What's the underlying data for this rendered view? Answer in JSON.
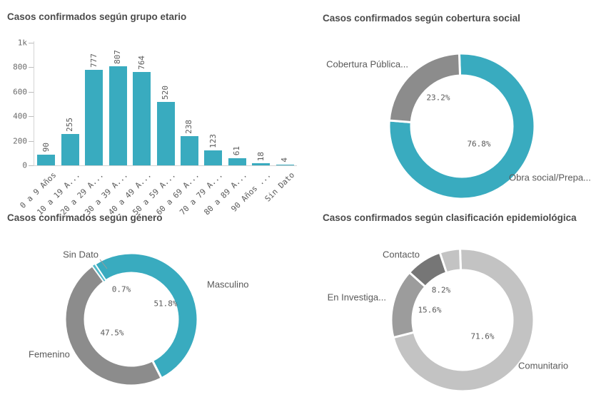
{
  "colors": {
    "teal": "#39abbf",
    "teal_light": "#52b9c9",
    "gray": "#8c8c8c",
    "gray_light": "#c3c3c3",
    "gray_medium": "#9c9c9c",
    "gray_dark": "#767676",
    "title_text": "#4c4c4c",
    "label_text": "#595959",
    "axis_line": "#d4d4d4"
  },
  "chart_data": [
    {
      "id": "grupo_etario",
      "type": "bar",
      "title": "Casos confirmados según grupo etario",
      "categories": [
        "0 a 9 Años",
        "10 a 19 A...",
        "20 a 29 A...",
        "30 a 39 A...",
        "40 a 49 A...",
        "50 a 59 A...",
        "60 a 69 A...",
        "70 a 79 A...",
        "80 a 89 A...",
        "90 Años ...",
        "Sin Dato"
      ],
      "values": [
        90,
        255,
        777,
        807,
        764,
        520,
        238,
        123,
        61,
        18,
        4
      ],
      "bar_color": "#39abbf",
      "ylim": [
        0,
        1000
      ],
      "grid": false,
      "y_ticks": [
        {
          "value": 0,
          "label": "0"
        },
        {
          "value": 200,
          "label": "200"
        },
        {
          "value": 400,
          "label": "400"
        },
        {
          "value": 600,
          "label": "600"
        },
        {
          "value": 800,
          "label": "800"
        },
        {
          "value": 1000,
          "label": "1k"
        }
      ]
    },
    {
      "id": "cobertura_social",
      "type": "donut",
      "title": "Casos confirmados según cobertura social",
      "slices": [
        {
          "label": "Obra social/Prepa...",
          "pct": 76.8,
          "pct_label": "76.8%",
          "color": "#39abbf"
        },
        {
          "label": "Cobertura Pública...",
          "pct": 23.2,
          "pct_label": "23.2%",
          "color": "#8c8c8c"
        }
      ]
    },
    {
      "id": "genero",
      "type": "donut",
      "title": "Casos confirmados según género",
      "slices": [
        {
          "label": "Masculino",
          "pct": 51.8,
          "pct_label": "51.8%",
          "color": "#39abbf"
        },
        {
          "label": "Femenino",
          "pct": 47.5,
          "pct_label": "47.5%",
          "color": "#8c8c8c"
        },
        {
          "label": "Sin Dato",
          "pct": 0.7,
          "pct_label": "0.7%",
          "color": "#52b9c9"
        }
      ]
    },
    {
      "id": "clasificacion",
      "type": "donut",
      "title": "Casos confirmados según clasificación epidemiológica",
      "slices": [
        {
          "label": "Comunitario",
          "pct": 71.6,
          "pct_label": "71.6%",
          "color": "#c3c3c3"
        },
        {
          "label": "En Investiga...",
          "pct": 15.6,
          "pct_label": "15.6%",
          "color": "#9c9c9c"
        },
        {
          "label": "Contacto",
          "pct": 8.2,
          "pct_label": "8.2%",
          "color": "#767676"
        },
        {
          "label": "",
          "pct": 4.6,
          "pct_label": "",
          "color": "#c3c3c3"
        }
      ]
    }
  ]
}
